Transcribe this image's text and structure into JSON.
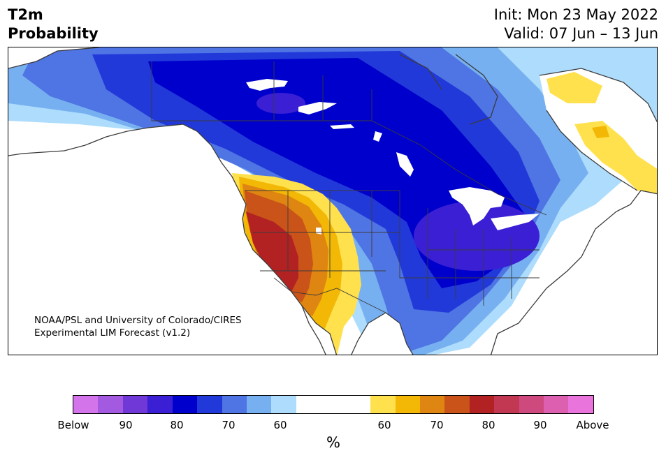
{
  "header": {
    "title_line1": "T2m",
    "title_line2": "Probability",
    "init": "Init: Mon 23 May 2022",
    "valid": "Valid: 07 Jun – 13 Jun"
  },
  "credit": {
    "line1": "NOAA/PSL and University of Colorado/CIRES",
    "line2": "Experimental LIM Forecast (v1.2)"
  },
  "legend": {
    "units": "%",
    "colors": [
      "#d474ea",
      "#a45ae0",
      "#7038d6",
      "#3a1fd4",
      "#0000cc",
      "#2239d9",
      "#4f74e3",
      "#77b0f0",
      "#addcfc",
      "#ffffff",
      "#ffe14e",
      "#f3b806",
      "#df8511",
      "#c95318",
      "#b22222",
      "#c23852",
      "#ce4a7e",
      "#dd5faf",
      "#e874dc"
    ],
    "tick_labels": [
      "Below",
      "90",
      "80",
      "70",
      "60",
      "60",
      "70",
      "80",
      "90",
      "Above"
    ]
  },
  "map": {
    "region": "North America",
    "feature_colors": {
      "coastline": "#3b3b3b",
      "borders": "#3b3b3b",
      "lakes": "#ffffff"
    }
  }
}
